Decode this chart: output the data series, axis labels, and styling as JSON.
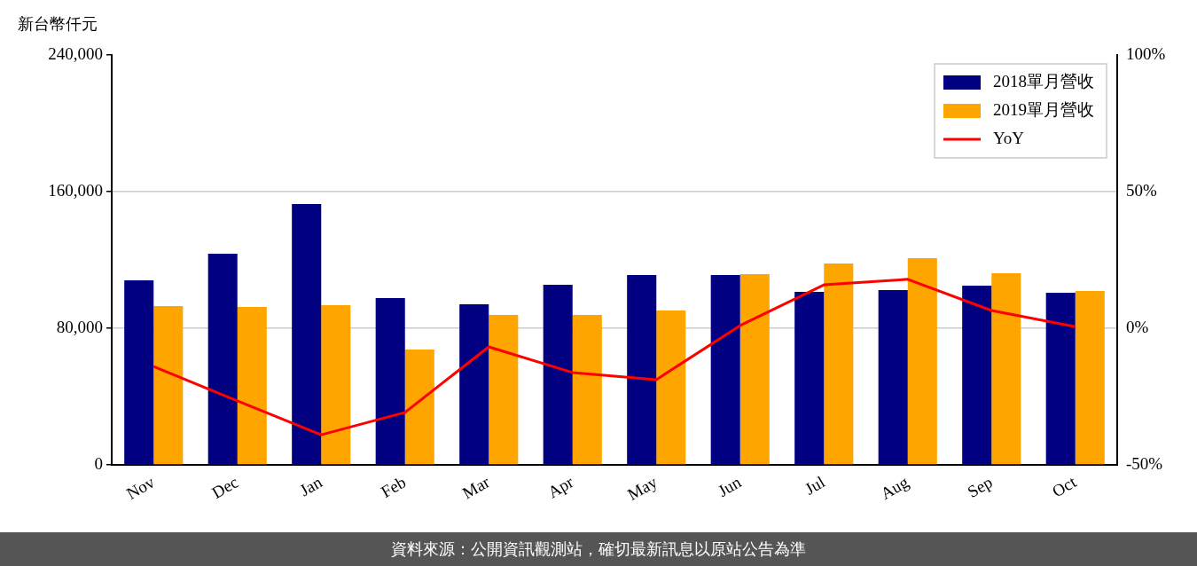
{
  "chart_data": {
    "type": "bar",
    "ylabel": "新台幣仟元",
    "categories": [
      "Nov",
      "Dec",
      "Jan",
      "Feb",
      "Mar",
      "Apr",
      "May",
      "Jun",
      "Jul",
      "Aug",
      "Sep",
      "Oct"
    ],
    "series": [
      {
        "name": "2018單月營收",
        "color": "#000080",
        "values": [
          108000,
          123600,
          152700,
          97700,
          94000,
          105500,
          111200,
          111200,
          101300,
          102300,
          104900,
          100800
        ]
      },
      {
        "name": "2019單月營收",
        "color": "#ffa500",
        "values": [
          93000,
          92500,
          93500,
          67500,
          87800,
          87800,
          90400,
          111700,
          117900,
          121000,
          112200,
          101800
        ]
      },
      {
        "name": "YoY",
        "type": "line",
        "axis": "y2",
        "color": "#ff0000",
        "marker": "none",
        "line_style": "solid",
        "values": [
          -14.0,
          -26.6,
          -39.0,
          -30.8,
          -6.8,
          -16.2,
          -18.8,
          1.0,
          15.9,
          17.9,
          6.5,
          0.6
        ]
      }
    ],
    "ylim": [
      0,
      240000
    ],
    "yticks": [
      0,
      {
        "value": 80000,
        "label": "80,000"
      },
      {
        "value": 160000,
        "label": "160,000"
      },
      {
        "value": 240000,
        "label": "240,000"
      }
    ],
    "y2lim": [
      -50,
      100
    ],
    "y2ticks": [
      {
        "value": -50,
        "label": "-50%"
      },
      {
        "value": 0,
        "label": "0%"
      },
      {
        "value": 50,
        "label": "50%"
      },
      {
        "value": 100,
        "label": "100%"
      }
    ],
    "grid": "y",
    "legend": "top right",
    "annotations": [
      "資料來源：公開資訊觀測站，確切最新訊息以原站公告為準"
    ]
  }
}
